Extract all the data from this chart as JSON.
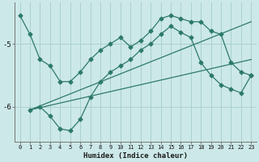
{
  "xlabel": "Humidex (Indice chaleur)",
  "background_color": "#cce8e8",
  "grid_color": "#aad0d0",
  "line_color": "#2d7a6a",
  "xlim": [
    -0.5,
    23.5
  ],
  "ylim": [
    -6.55,
    -4.35
  ],
  "yticks": [
    -6,
    -5
  ],
  "xticks": [
    0,
    1,
    2,
    3,
    4,
    5,
    6,
    7,
    8,
    9,
    10,
    11,
    12,
    13,
    14,
    15,
    16,
    17,
    18,
    19,
    20,
    21,
    22,
    23
  ],
  "line1_x": [
    0,
    1,
    2,
    3,
    4,
    5,
    6,
    7,
    8,
    9,
    10,
    11,
    12,
    13,
    14,
    15,
    16,
    17,
    18,
    19,
    20,
    21,
    22,
    23
  ],
  "line1_y": [
    -4.55,
    -4.85,
    -5.25,
    -5.35,
    -5.6,
    -5.6,
    -5.45,
    -5.25,
    -5.1,
    -5.0,
    -4.9,
    -5.05,
    -4.95,
    -4.8,
    -4.6,
    -4.55,
    -4.6,
    -4.65,
    -4.65,
    -4.8,
    -4.85,
    -5.3,
    -5.45,
    -5.5
  ],
  "line2_x": [
    1,
    2,
    3,
    4,
    5,
    6,
    7,
    8,
    9,
    10,
    11,
    12,
    13,
    14,
    15,
    16,
    17,
    18,
    19,
    20,
    21,
    22,
    23
  ],
  "line2_y": [
    -6.05,
    -6.0,
    -6.15,
    -6.35,
    -6.38,
    -6.2,
    -5.85,
    -5.6,
    -5.45,
    -5.35,
    -5.25,
    -5.1,
    -5.0,
    -4.85,
    -4.72,
    -4.82,
    -4.9,
    -5.3,
    -5.5,
    -5.65,
    -5.72,
    -5.78,
    -5.5
  ],
  "line3_x": [
    1,
    23
  ],
  "line3_y": [
    -6.05,
    -5.25
  ],
  "line4_x": [
    1,
    23
  ],
  "line4_y": [
    -6.05,
    -4.65
  ]
}
